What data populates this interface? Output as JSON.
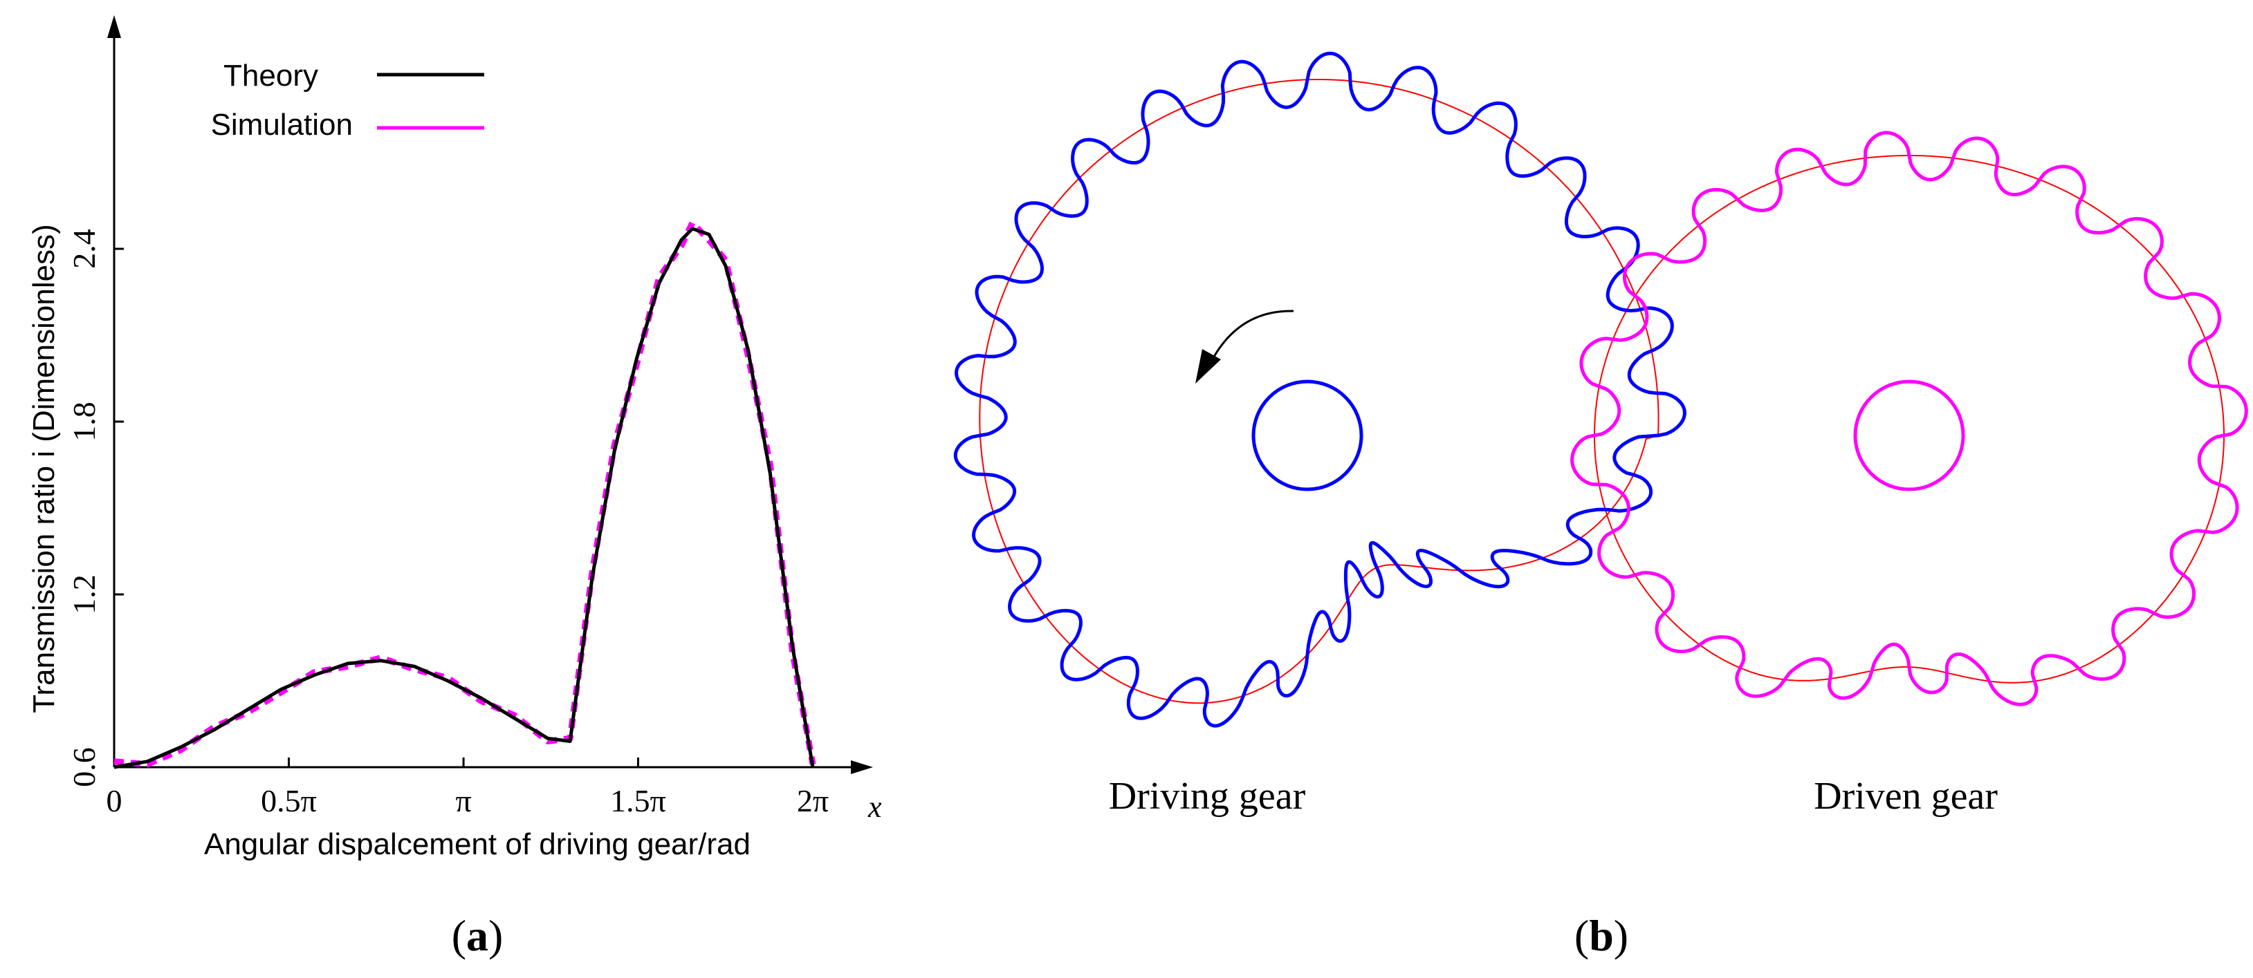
{
  "panel_a": {
    "label_open": "(",
    "label_letter": "a",
    "label_close": ")",
    "legend": [
      {
        "label": "Theory",
        "color": "#000000"
      },
      {
        "label": "Simulation",
        "color": "#ff00ff"
      }
    ],
    "x_axis_title": "Angular dispalcement of driving gear/rad",
    "x_axis_var": "x",
    "y_axis_title": "Transmission ratio i (Dimensionless)",
    "x_ticks": [
      "0",
      "0.5π",
      "π",
      "1.5π",
      "2π"
    ],
    "y_ticks": [
      "0.6",
      "1.2",
      "1.8",
      "2.4"
    ]
  },
  "panel_b": {
    "label_open": "(",
    "label_letter": "b",
    "label_close": ")",
    "driving_gear_label": "Driving gear",
    "driven_gear_label": "Driven gear",
    "driving_gear_color": "#0000ff",
    "driven_gear_color": "#ff00ff",
    "pitch_curve_color": "#ff0000",
    "rotation_icon": "counterclockwise-arrow-icon"
  },
  "chart_data": {
    "type": "line",
    "title": "",
    "xlabel": "Angular dispalcement of driving gear/rad",
    "ylabel": "Transmission ratio i (Dimensionless)",
    "xlim": [
      0,
      6.283
    ],
    "ylim": [
      0.6,
      3.0
    ],
    "x_tick_values": [
      0,
      1.571,
      3.142,
      4.712,
      6.283
    ],
    "y_tick_values": [
      0.6,
      1.2,
      1.8,
      2.4
    ],
    "grid": false,
    "legend_position": "top-left",
    "series": [
      {
        "name": "Theory",
        "color": "#000000",
        "x": [
          0,
          0.3,
          0.6,
          0.9,
          1.2,
          1.5,
          1.8,
          2.1,
          2.4,
          2.7,
          3.0,
          3.3,
          3.6,
          3.9,
          4.1,
          4.3,
          4.5,
          4.7,
          4.9,
          5.1,
          5.2,
          5.35,
          5.5,
          5.7,
          5.9,
          6.1,
          6.283
        ],
        "y": [
          0.6,
          0.62,
          0.67,
          0.73,
          0.8,
          0.87,
          0.92,
          0.96,
          0.97,
          0.95,
          0.9,
          0.84,
          0.77,
          0.7,
          0.69,
          1.26,
          1.7,
          2.02,
          2.28,
          2.43,
          2.47,
          2.45,
          2.34,
          2.05,
          1.62,
          1.02,
          0.6
        ]
      },
      {
        "name": "Simulation",
        "color": "#ff00ff",
        "x": [
          0,
          0.3,
          0.6,
          0.9,
          1.2,
          1.5,
          1.8,
          2.1,
          2.4,
          2.7,
          3.0,
          3.3,
          3.6,
          3.9,
          4.1,
          4.3,
          4.5,
          4.7,
          4.9,
          5.1,
          5.2,
          5.35,
          5.5,
          5.7,
          5.9,
          6.1,
          6.283
        ],
        "y": [
          0.62,
          0.61,
          0.66,
          0.74,
          0.79,
          0.86,
          0.93,
          0.95,
          0.98,
          0.94,
          0.91,
          0.83,
          0.78,
          0.69,
          0.7,
          1.28,
          1.72,
          2.0,
          2.3,
          2.41,
          2.49,
          2.43,
          2.36,
          2.03,
          1.65,
          1.0,
          0.61
        ]
      }
    ]
  }
}
